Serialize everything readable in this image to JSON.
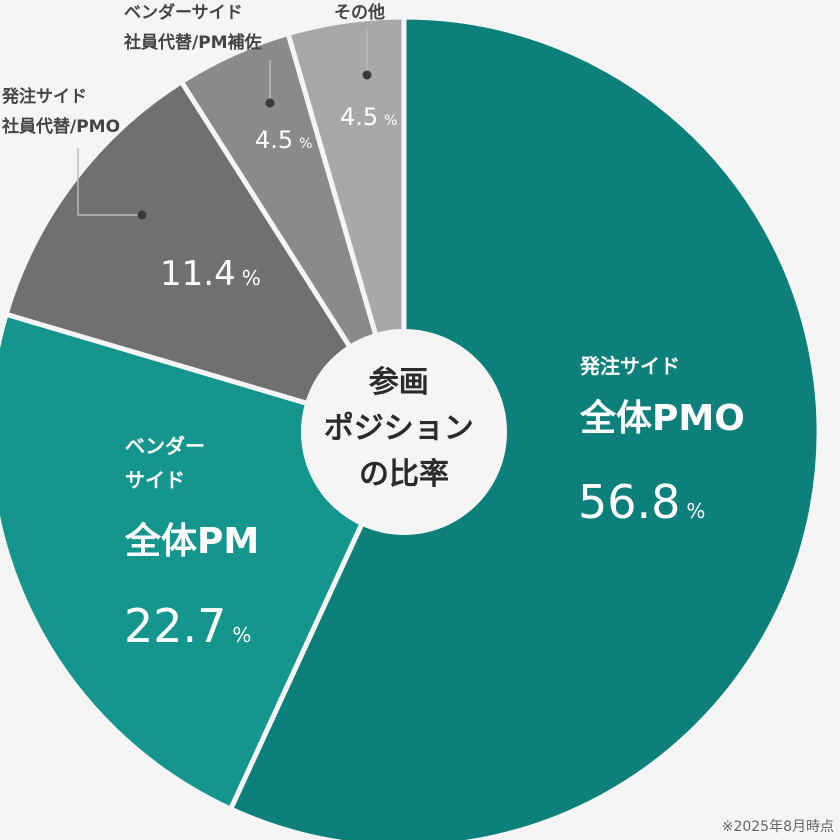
{
  "chart_data": {
    "type": "pie",
    "unit": "%",
    "center_label": [
      "参画",
      "ポジション",
      "の比率"
    ],
    "footnote": "※2025年8月時点",
    "slices": [
      {
        "name_lines": [
          "発注サイド",
          "全体PMO"
        ],
        "value": 56.8,
        "value_text": "56.8",
        "color": "#0e807b"
      },
      {
        "name_lines": [
          "ベンダー",
          "サイド",
          "全体PM"
        ],
        "value": 22.7,
        "value_text": "22.7",
        "color": "#14968f"
      },
      {
        "name_lines": [
          "発注サイド",
          "社員代替/PMO"
        ],
        "value": 11.4,
        "value_text": "11.4",
        "color": "#707070"
      },
      {
        "name_lines": [
          "ベンダーサイド",
          "社員代替/PM補佐"
        ],
        "value": 4.5,
        "value_text": "4.5",
        "color": "#8a8a8a"
      },
      {
        "name_lines": [
          "その他"
        ],
        "value": 4.5,
        "value_text": "4.5",
        "color": "#a8a8a8"
      }
    ]
  }
}
